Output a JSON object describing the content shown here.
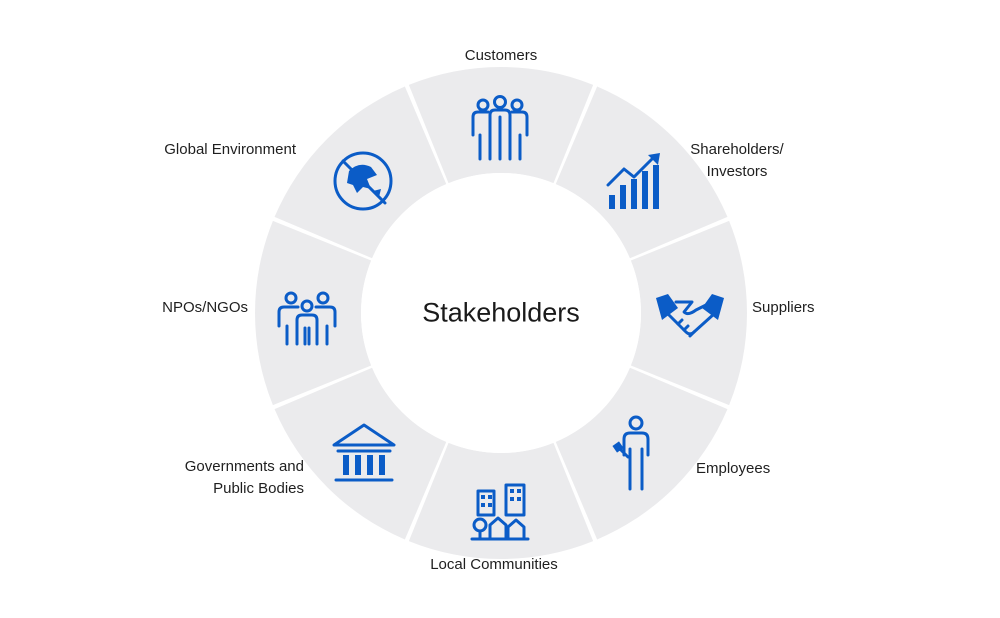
{
  "diagram": {
    "center_title": "Stakeholders",
    "segment_color": "#ebebed",
    "icon_color": "#0b5cc7",
    "segments": [
      {
        "id": "customers",
        "lines": [
          "Customers"
        ],
        "icon": "people-group-icon"
      },
      {
        "id": "shareholders",
        "lines": [
          "Shareholders/",
          "Investors"
        ],
        "icon": "growth-chart-icon"
      },
      {
        "id": "suppliers",
        "lines": [
          "Suppliers"
        ],
        "icon": "handshake-icon"
      },
      {
        "id": "employees",
        "lines": [
          "Employees"
        ],
        "icon": "employee-icon"
      },
      {
        "id": "local-communities",
        "lines": [
          "Local Communities"
        ],
        "icon": "city-icon"
      },
      {
        "id": "governments",
        "lines": [
          "Governments and",
          "Public Bodies"
        ],
        "icon": "government-building-icon"
      },
      {
        "id": "npos",
        "lines": [
          "NPOs/NGOs"
        ],
        "icon": "community-group-icon"
      },
      {
        "id": "global-environment",
        "lines": [
          "Global Environment"
        ],
        "icon": "globe-icon"
      }
    ]
  }
}
